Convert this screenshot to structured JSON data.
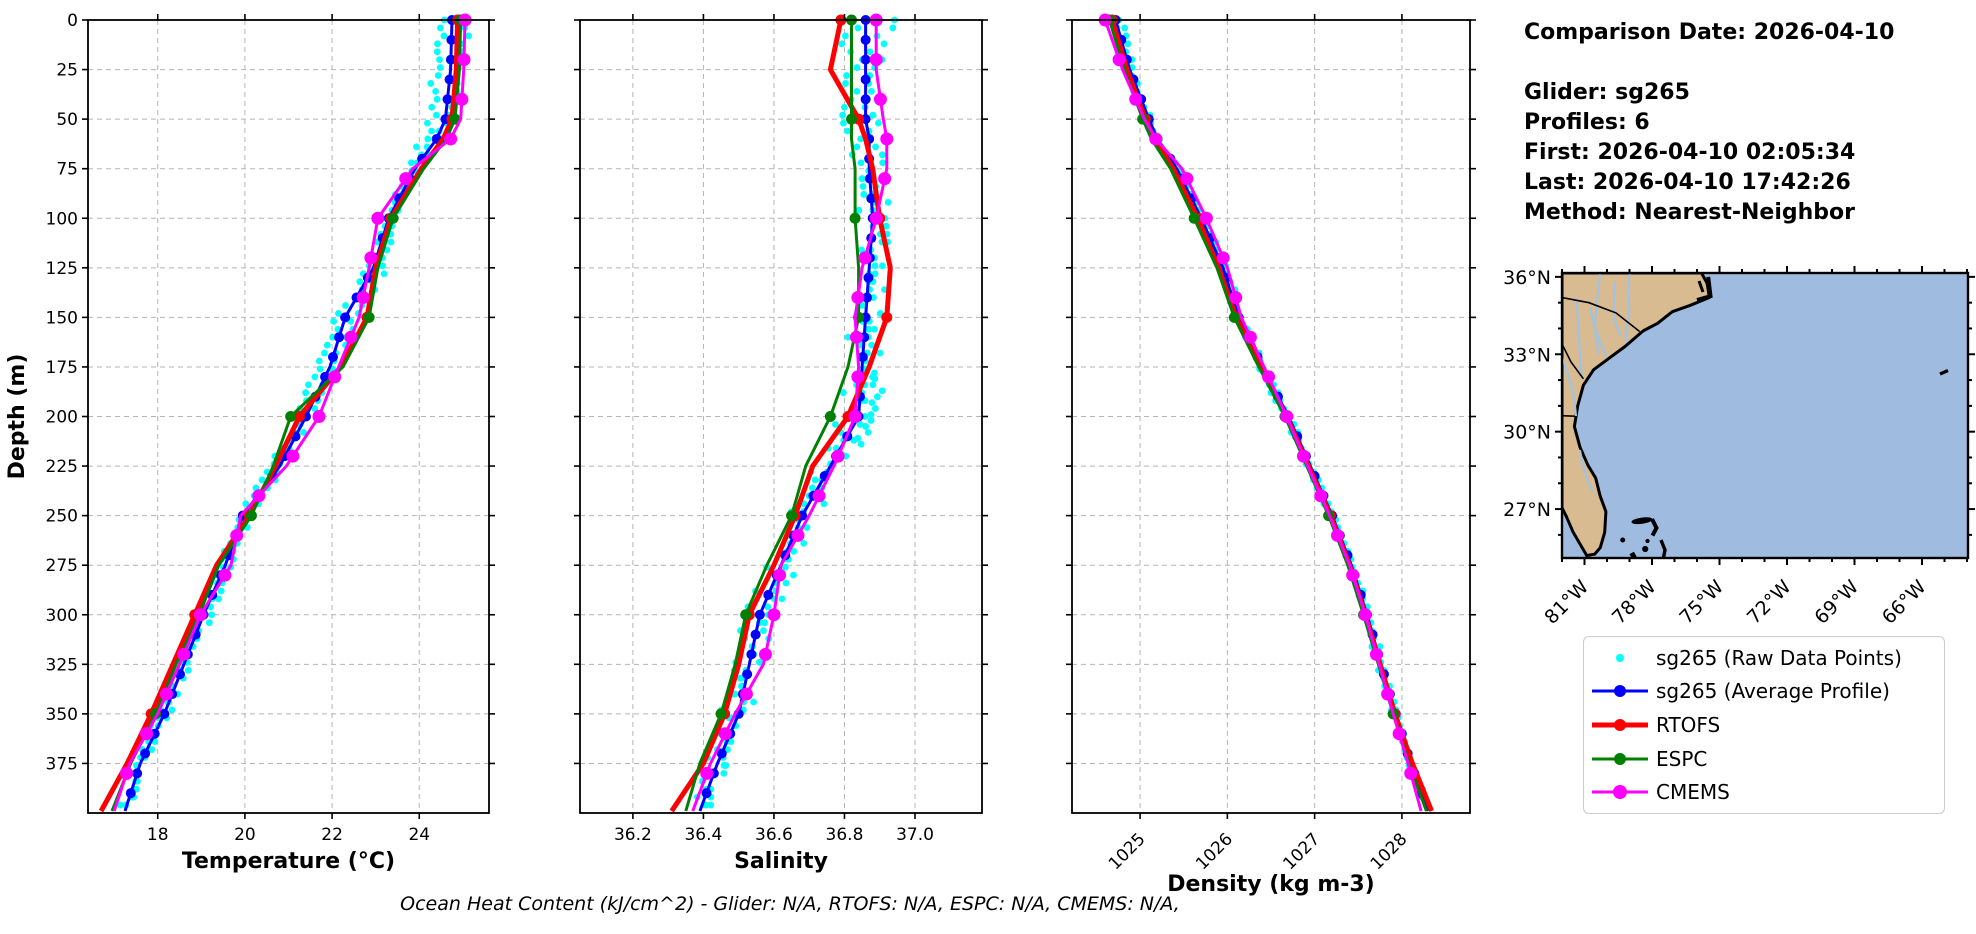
{
  "info_panel": {
    "lines": [
      "Comparison Date: 2026-04-10",
      "",
      "Glider: sg265",
      "Profiles: 6",
      "First: 2026-04-10 02:05:34",
      "Last: 2026-04-10 17:42:26",
      "Method: Nearest-Neighbor"
    ]
  },
  "caption": "Ocean Heat Content (kJ/cm^2) - Glider: N/A,  RTOFS: N/A,  ESPC: N/A,  CMEMS: N/A,",
  "legend": {
    "items": [
      {
        "label": "sg265 (Raw Data Points)",
        "color": "#00FFFF",
        "style": "dot",
        "lw": 0,
        "r": 4
      },
      {
        "label": "sg265 (Average Profile)",
        "color": "#0000FF",
        "style": "line-dot",
        "lw": 3,
        "r": 6
      },
      {
        "label": "RTOFS",
        "color": "#FF0000",
        "style": "line-dot",
        "lw": 5,
        "r": 6
      },
      {
        "label": "ESPC",
        "color": "#008000",
        "style": "line-dot",
        "lw": 3,
        "r": 6
      },
      {
        "label": "CMEMS",
        "color": "#FF00FF",
        "style": "line-dot",
        "lw": 3,
        "r": 7
      }
    ]
  },
  "map": {
    "land_color": "#d8bb90",
    "ocean_color": "#a0bbe0",
    "river_color": "#9cc3ea",
    "lat_ticks": [
      {
        "label": "36°N",
        "lat": 36
      },
      {
        "label": "33°N",
        "lat": 33
      },
      {
        "label": "30°N",
        "lat": 30
      },
      {
        "label": "27°N",
        "lat": 27
      }
    ],
    "lon_ticks": [
      {
        "label": "81°W",
        "lon": -81
      },
      {
        "label": "78°W",
        "lon": -78
      },
      {
        "label": "75°W",
        "lon": -75
      },
      {
        "label": "72°W",
        "lon": -72
      },
      {
        "label": "69°W",
        "lon": -69
      },
      {
        "label": "66°W",
        "lon": -66
      }
    ]
  },
  "chart_data": [
    {
      "type": "line",
      "xlabel": "Temperature (°C)",
      "ylabel": "Depth (m)",
      "xlim": [
        16.4,
        25.6
      ],
      "ylim": [
        0,
        400
      ],
      "grid": true,
      "xticks": [
        {
          "v": 18,
          "label": "18"
        },
        {
          "v": 20,
          "label": "20"
        },
        {
          "v": 22,
          "label": "22"
        },
        {
          "v": 24,
          "label": "24"
        }
      ],
      "ytick_step": 25,
      "ytick_max": 375,
      "xtick_rotate": false,
      "depths": [
        0,
        25,
        50,
        60,
        75,
        100,
        125,
        150,
        175,
        200,
        225,
        250,
        275,
        300,
        325,
        350,
        375,
        399
      ],
      "series": [
        {
          "name": "sg265 (Average Profile)",
          "color": "#0000FF",
          "lw": 3,
          "marker_r": 5,
          "marker_step": 10,
          "values": [
            24.75,
            24.72,
            24.6,
            24.4,
            23.9,
            23.3,
            22.95,
            22.3,
            21.95,
            21.4,
            20.8,
            19.95,
            19.55,
            19.05,
            18.6,
            18.15,
            17.6,
            17.25
          ]
        },
        {
          "name": "RTOFS",
          "color": "#FF0000",
          "lw": 5,
          "marker_r": 5.5,
          "marker_step": 50,
          "values": [
            24.88,
            24.85,
            24.75,
            24.55,
            24.05,
            23.35,
            23.0,
            22.8,
            22.2,
            21.25,
            20.7,
            20.1,
            19.35,
            18.85,
            18.35,
            17.85,
            17.3,
            16.7
          ]
        },
        {
          "name": "ESPC",
          "color": "#008000",
          "lw": 3,
          "marker_r": 5.5,
          "marker_step": 50,
          "values": [
            24.95,
            24.92,
            24.82,
            24.62,
            24.1,
            23.4,
            23.05,
            22.85,
            22.25,
            21.05,
            20.65,
            20.15,
            19.4,
            18.95,
            18.42,
            17.95,
            17.38,
            16.95
          ]
        },
        {
          "name": "CMEMS",
          "color": "#FF00FF",
          "lw": 3,
          "marker_r": 6.5,
          "marker_step": 20,
          "values": [
            25.05,
            25.02,
            24.95,
            24.72,
            23.85,
            23.05,
            22.85,
            22.62,
            22.15,
            21.7,
            20.95,
            19.9,
            19.68,
            18.98,
            18.5,
            18.0,
            17.36,
            17.0
          ]
        }
      ],
      "raw": {
        "name": "sg265 (Raw Data Points)",
        "color": "#00FFFF",
        "r": 3.4,
        "step": 4,
        "amp": 0.38,
        "jit": 0.12,
        "seed": 11
      }
    },
    {
      "type": "line",
      "xlabel": "Salinity",
      "ylabel": "",
      "xlim": [
        36.05,
        37.19
      ],
      "ylim": [
        0,
        400
      ],
      "grid": true,
      "xticks": [
        {
          "v": 36.2,
          "label": "36.2"
        },
        {
          "v": 36.4,
          "label": "36.4"
        },
        {
          "v": 36.6,
          "label": "36.6"
        },
        {
          "v": 36.8,
          "label": "36.8"
        },
        {
          "v": 37.0,
          "label": "37.0"
        }
      ],
      "ytick_step": 25,
      "ytick_max": 375,
      "xtick_rotate": false,
      "depths": [
        0,
        25,
        50,
        60,
        75,
        100,
        125,
        150,
        175,
        200,
        225,
        250,
        275,
        300,
        325,
        350,
        375,
        399
      ],
      "series": [
        {
          "name": "sg265 (Average Profile)",
          "color": "#0000FF",
          "lw": 3,
          "marker_r": 5,
          "marker_step": 10,
          "values": [
            36.86,
            36.86,
            36.86,
            36.87,
            36.87,
            36.88,
            36.87,
            36.86,
            36.85,
            36.84,
            36.76,
            36.68,
            36.62,
            36.56,
            36.53,
            36.5,
            36.44,
            36.39
          ]
        },
        {
          "name": "RTOFS",
          "color": "#FF0000",
          "lw": 5,
          "marker_r": 5.5,
          "marker_step": 50,
          "values": [
            36.79,
            36.76,
            36.84,
            36.86,
            36.88,
            36.9,
            36.93,
            36.92,
            36.87,
            36.81,
            36.71,
            36.66,
            36.6,
            36.53,
            36.5,
            36.46,
            36.4,
            36.31
          ]
        },
        {
          "name": "ESPC",
          "color": "#008000",
          "lw": 3,
          "marker_r": 5.5,
          "marker_step": 50,
          "values": [
            36.82,
            36.82,
            36.82,
            36.82,
            36.83,
            36.83,
            36.84,
            36.84,
            36.81,
            36.76,
            36.69,
            36.65,
            36.58,
            36.52,
            36.49,
            36.45,
            36.39,
            36.35
          ]
        },
        {
          "name": "CMEMS",
          "color": "#FF00FF",
          "lw": 3,
          "marker_r": 6.5,
          "marker_step": 20,
          "values": [
            36.89,
            36.89,
            36.91,
            36.92,
            36.92,
            36.89,
            36.85,
            36.83,
            36.84,
            36.83,
            36.77,
            36.7,
            36.62,
            36.6,
            36.57,
            36.49,
            36.42,
            36.37
          ]
        }
      ],
      "raw": {
        "name": "sg265 (Raw Data Points)",
        "color": "#00FFFF",
        "r": 3.4,
        "step": 4,
        "amp": 0.05,
        "jit": 0.035,
        "seed": 23,
        "bump": {
          "from": 178,
          "to": 214,
          "off": 0.05
        }
      }
    },
    {
      "type": "line",
      "xlabel": "Density (kg m-3)",
      "ylabel": "",
      "xlim": [
        1024.22,
        1028.78
      ],
      "ylim": [
        0,
        400
      ],
      "grid": true,
      "xticks": [
        {
          "v": 1025,
          "label": "1025"
        },
        {
          "v": 1026,
          "label": "1026"
        },
        {
          "v": 1027,
          "label": "1027"
        },
        {
          "v": 1028,
          "label": "1028"
        }
      ],
      "ytick_step": 25,
      "ytick_max": 375,
      "xtick_rotate": true,
      "depths": [
        0,
        25,
        50,
        60,
        75,
        100,
        125,
        150,
        175,
        200,
        225,
        250,
        275,
        300,
        325,
        350,
        375,
        399
      ],
      "series": [
        {
          "name": "sg265 (Average Profile)",
          "color": "#0000FF",
          "lw": 3,
          "marker_r": 5,
          "marker_step": 10,
          "values": [
            1024.72,
            1024.88,
            1025.1,
            1025.2,
            1025.42,
            1025.7,
            1025.95,
            1026.13,
            1026.4,
            1026.7,
            1026.95,
            1027.2,
            1027.42,
            1027.6,
            1027.76,
            1027.93,
            1028.1,
            1028.3
          ]
        },
        {
          "name": "RTOFS",
          "color": "#FF0000",
          "lw": 5,
          "marker_r": 5.5,
          "marker_step": 50,
          "values": [
            1024.68,
            1024.85,
            1025.06,
            1025.16,
            1025.38,
            1025.66,
            1025.9,
            1026.1,
            1026.38,
            1026.68,
            1026.93,
            1027.18,
            1027.4,
            1027.58,
            1027.75,
            1027.92,
            1028.12,
            1028.34
          ]
        },
        {
          "name": "ESPC",
          "color": "#008000",
          "lw": 3,
          "marker_r": 5.5,
          "marker_step": 50,
          "values": [
            1024.65,
            1024.82,
            1025.03,
            1025.13,
            1025.35,
            1025.62,
            1025.88,
            1026.08,
            1026.36,
            1026.66,
            1026.91,
            1027.16,
            1027.38,
            1027.56,
            1027.73,
            1027.9,
            1028.08,
            1028.28
          ]
        },
        {
          "name": "CMEMS",
          "color": "#FF00FF",
          "lw": 3,
          "marker_r": 6.5,
          "marker_step": 20,
          "values": [
            1024.6,
            1024.8,
            1025.05,
            1025.18,
            1025.48,
            1025.76,
            1026.0,
            1026.16,
            1026.42,
            1026.68,
            1026.92,
            1027.17,
            1027.4,
            1027.58,
            1027.74,
            1027.9,
            1028.07,
            1028.22
          ]
        }
      ],
      "raw": {
        "name": "sg265 (Raw Data Points)",
        "color": "#00FFFF",
        "r": 3.4,
        "step": 4,
        "amp": 0.055,
        "jit": 0.03,
        "seed": 37
      }
    }
  ]
}
